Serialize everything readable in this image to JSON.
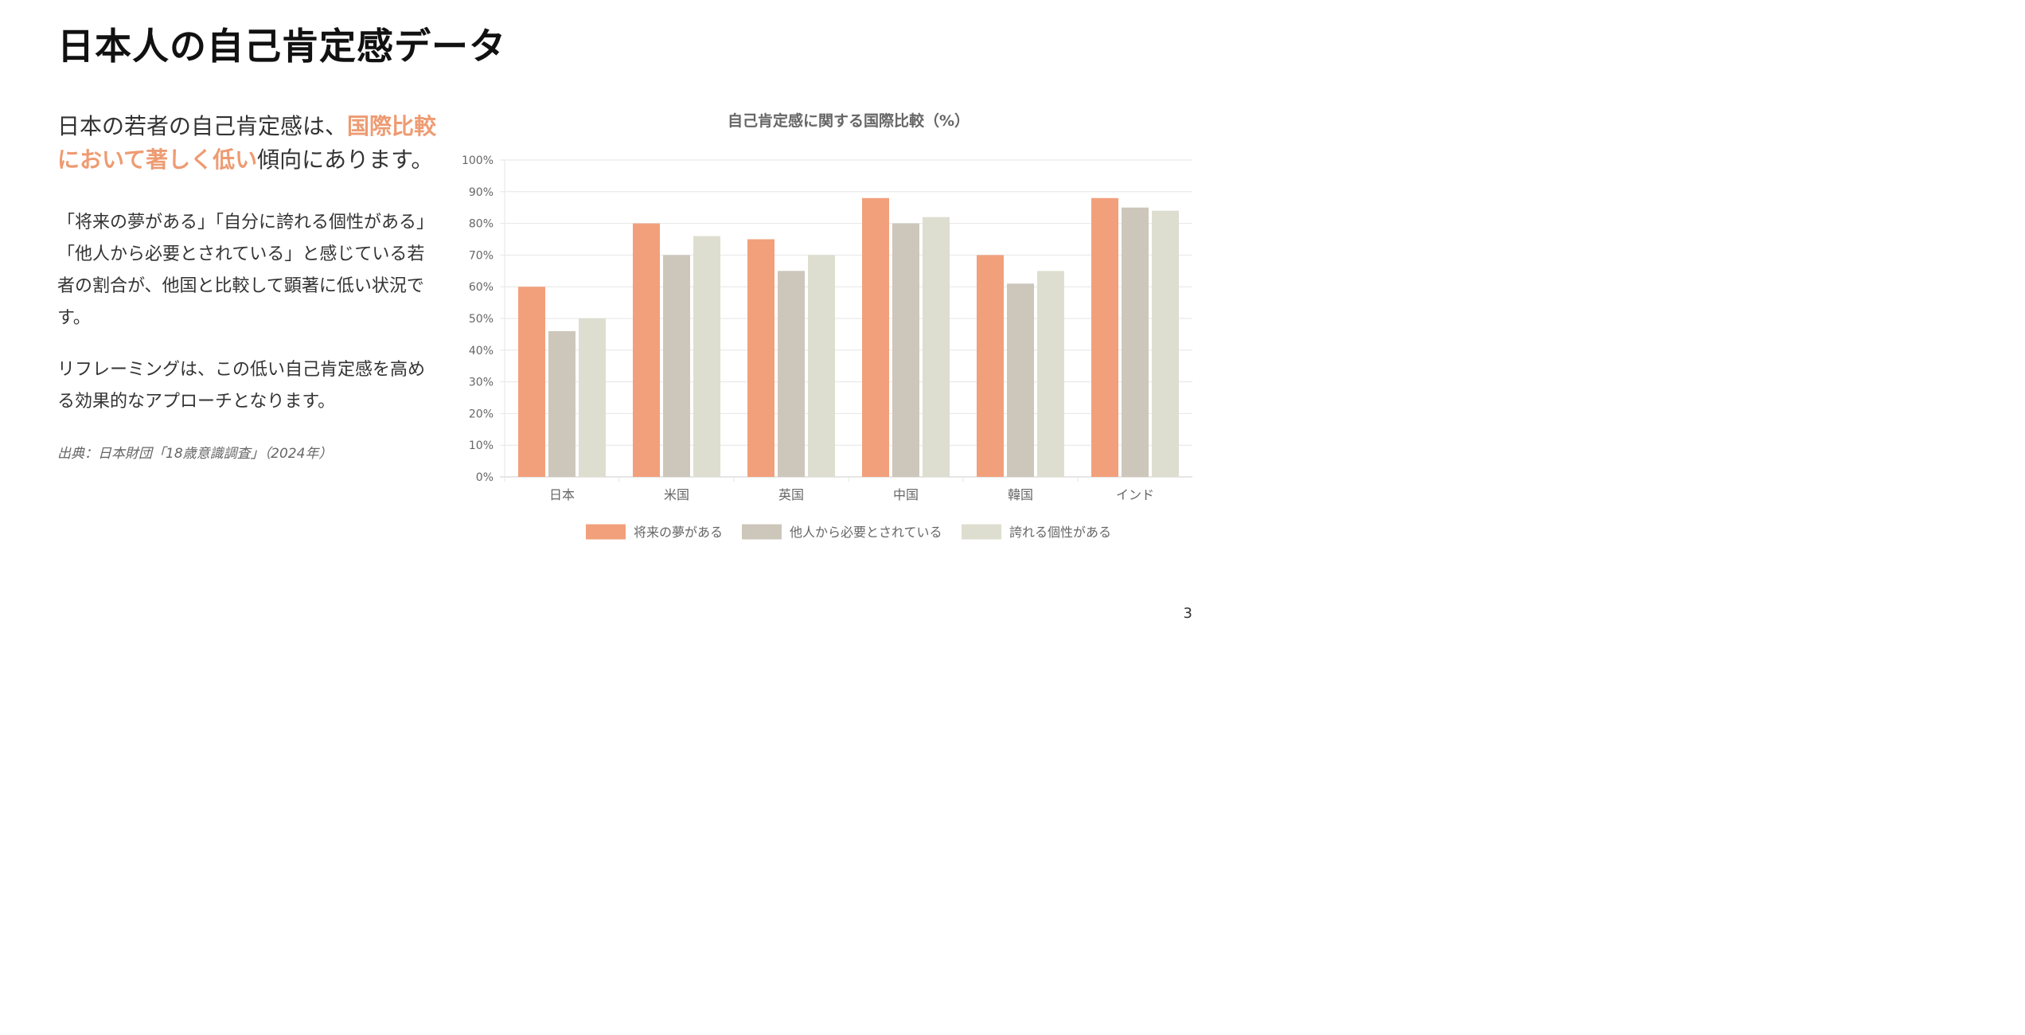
{
  "page": {
    "title": "日本人の自己肯定感データ",
    "page_number": "3"
  },
  "left": {
    "lead_prefix": "日本の若者の自己肯定感は、",
    "lead_highlight": "国際比較において著しく低い",
    "lead_suffix": "傾向にあります。",
    "paragraph1": "「将来の夢がある」「自分に誇れる個性がある」「他人から必要とされている」と感じている若者の割合が、他国と比較して顕著に低い状況です。",
    "paragraph2": "リフレーミングは、この低い自己肯定感を高める効果的なアプローチとなります。",
    "source": "出典：日本財団「18歳意識調査」（2024年）"
  },
  "colors": {
    "accent": "#EE9B72",
    "text": "#333333"
  },
  "chart_data": {
    "type": "bar",
    "title": "自己肯定感に関する国際比較（%）",
    "categories": [
      "日本",
      "米国",
      "英国",
      "中国",
      "韓国",
      "インド"
    ],
    "series": [
      {
        "name": "将来の夢がある",
        "color": "#F2A07B",
        "values": [
          60,
          80,
          75,
          88,
          70,
          88
        ]
      },
      {
        "name": "他人から必要とされている",
        "color": "#CDC6BB",
        "values": [
          46,
          70,
          65,
          80,
          61,
          85
        ]
      },
      {
        "name": "誇れる個性がある",
        "color": "#DEDED0",
        "values": [
          50,
          76,
          70,
          82,
          65,
          84
        ]
      }
    ],
    "ylim": [
      0,
      100
    ],
    "yticks": [
      0,
      10,
      20,
      30,
      40,
      50,
      60,
      70,
      80,
      90,
      100
    ],
    "ytick_suffix": "%",
    "grid": true,
    "legend_position": "bottom"
  }
}
